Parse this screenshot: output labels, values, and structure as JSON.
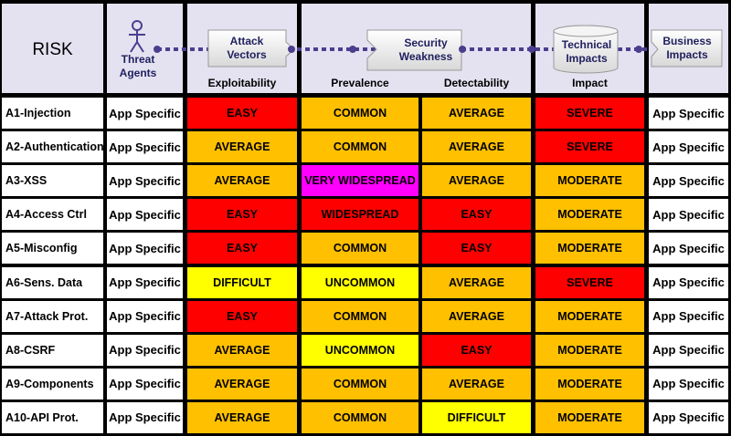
{
  "header": {
    "risk": "RISK",
    "threat_agents": "Threat Agents",
    "attack_vectors": "Attack Vectors",
    "security_weakness": "Security Weakness",
    "technical_impacts": "Technical Impacts",
    "business_impacts": "Business Impacts",
    "exploitability": "Exploitability",
    "prevalence": "Prevalence",
    "detectability": "Detectability",
    "impact": "Impact"
  },
  "rows": [
    {
      "risk": "A1-Injection",
      "agents": "App Specific",
      "cells": [
        "EASY",
        "COMMON",
        "AVERAGE",
        "SEVERE"
      ],
      "colors": [
        "#ff0000",
        "#ffc000",
        "#ffc000",
        "#ff0000"
      ],
      "business": "App Specific"
    },
    {
      "risk": "A2-Authentication",
      "agents": "App Specific",
      "cells": [
        "AVERAGE",
        "COMMON",
        "AVERAGE",
        "SEVERE"
      ],
      "colors": [
        "#ffc000",
        "#ffc000",
        "#ffc000",
        "#ff0000"
      ],
      "business": "App Specific"
    },
    {
      "risk": "A3-XSS",
      "agents": "App Specific",
      "cells": [
        "AVERAGE",
        "VERY WIDESPREAD",
        "AVERAGE",
        "MODERATE"
      ],
      "colors": [
        "#ffc000",
        "#ff00ff",
        "#ffc000",
        "#ffc000"
      ],
      "business": "App Specific"
    },
    {
      "risk": "A4-Access Ctrl",
      "agents": "App Specific",
      "cells": [
        "EASY",
        "WIDESPREAD",
        "EASY",
        "MODERATE"
      ],
      "colors": [
        "#ff0000",
        "#ff0000",
        "#ff0000",
        "#ffc000"
      ],
      "business": "App Specific"
    },
    {
      "risk": "A5-Misconfig",
      "agents": "App Specific",
      "cells": [
        "EASY",
        "COMMON",
        "EASY",
        "MODERATE"
      ],
      "colors": [
        "#ff0000",
        "#ffc000",
        "#ff0000",
        "#ffc000"
      ],
      "business": "App Specific"
    },
    {
      "risk": "A6-Sens. Data",
      "agents": "App Specific",
      "cells": [
        "DIFFICULT",
        "UNCOMMON",
        "AVERAGE",
        "SEVERE"
      ],
      "colors": [
        "#ffff00",
        "#ffff00",
        "#ffc000",
        "#ff0000"
      ],
      "business": "App Specific"
    },
    {
      "risk": "A7-Attack Prot.",
      "agents": "App Specific",
      "cells": [
        "EASY",
        "COMMON",
        "AVERAGE",
        "MODERATE"
      ],
      "colors": [
        "#ff0000",
        "#ffc000",
        "#ffc000",
        "#ffc000"
      ],
      "business": "App Specific"
    },
    {
      "risk": "A8-CSRF",
      "agents": "App Specific",
      "cells": [
        "AVERAGE",
        "UNCOMMON",
        "EASY",
        "MODERATE"
      ],
      "colors": [
        "#ffc000",
        "#ffff00",
        "#ff0000",
        "#ffc000"
      ],
      "business": "App Specific"
    },
    {
      "risk": "A9-Components",
      "agents": "App Specific",
      "cells": [
        "AVERAGE",
        "COMMON",
        "AVERAGE",
        "MODERATE"
      ],
      "colors": [
        "#ffc000",
        "#ffc000",
        "#ffc000",
        "#ffc000"
      ],
      "business": "App Specific"
    },
    {
      "risk": "A10-API Prot.",
      "agents": "App Specific",
      "cells": [
        "AVERAGE",
        "COMMON",
        "DIFFICULT",
        "MODERATE"
      ],
      "colors": [
        "#ffc000",
        "#ffc000",
        "#ffff00",
        "#ffc000"
      ],
      "business": "App Specific"
    }
  ]
}
